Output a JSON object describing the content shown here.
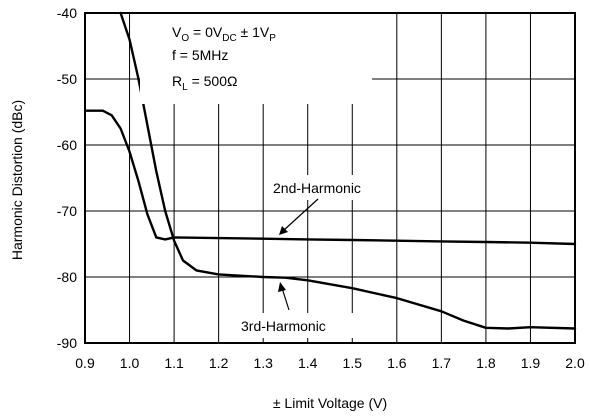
{
  "chart_data": {
    "type": "line",
    "xlabel": "± Limit Voltage (V)",
    "ylabel": "Harmonic Distortion (dBc)",
    "xlim": [
      0.9,
      2.0
    ],
    "ylim": [
      -90,
      -40
    ],
    "xticks": [
      "0.9",
      "1.0",
      "1.1",
      "1.2",
      "1.3",
      "1.4",
      "1.5",
      "1.6",
      "1.7",
      "1.8",
      "1.9",
      "2.0"
    ],
    "yticks": [
      "-40",
      "-50",
      "-60",
      "-70",
      "-80",
      "-90"
    ],
    "grid": true,
    "conditions": {
      "line1": {
        "base": "V",
        "sub1": "O",
        "mid": " = 0V",
        "sub2": "DC",
        "tail": " ± 1V",
        "sub3": "P"
      },
      "line2": "f = 5MHz",
      "line3": {
        "base": "R",
        "sub1": "L",
        "tail": " = 500Ω"
      }
    },
    "series": [
      {
        "name": "2nd-Harmonic",
        "x": [
          0.9,
          0.94,
          0.96,
          0.98,
          1.0,
          1.02,
          1.04,
          1.06,
          1.08,
          1.1,
          1.2,
          1.3,
          1.4,
          1.5,
          1.6,
          1.7,
          1.8,
          1.9,
          2.0
        ],
        "y": [
          -54.8,
          -54.8,
          -55.5,
          -57.5,
          -61,
          -65.5,
          -70.5,
          -74,
          -74.3,
          -74.0,
          -74.1,
          -74.2,
          -74.3,
          -74.4,
          -74.5,
          -74.6,
          -74.7,
          -74.8,
          -75.0
        ]
      },
      {
        "name": "3rd-Harmonic",
        "x": [
          0.98,
          1.0,
          1.02,
          1.04,
          1.06,
          1.08,
          1.1,
          1.12,
          1.15,
          1.2,
          1.3,
          1.35,
          1.4,
          1.5,
          1.6,
          1.7,
          1.75,
          1.8,
          1.85,
          1.9,
          2.0
        ],
        "y": [
          -40,
          -44,
          -50,
          -57,
          -64,
          -70,
          -74.5,
          -77.5,
          -79,
          -79.6,
          -80.0,
          -80.1,
          -80.5,
          -81.7,
          -83.2,
          -85.2,
          -86.6,
          -87.7,
          -87.8,
          -87.6,
          -87.8
        ]
      }
    ]
  }
}
